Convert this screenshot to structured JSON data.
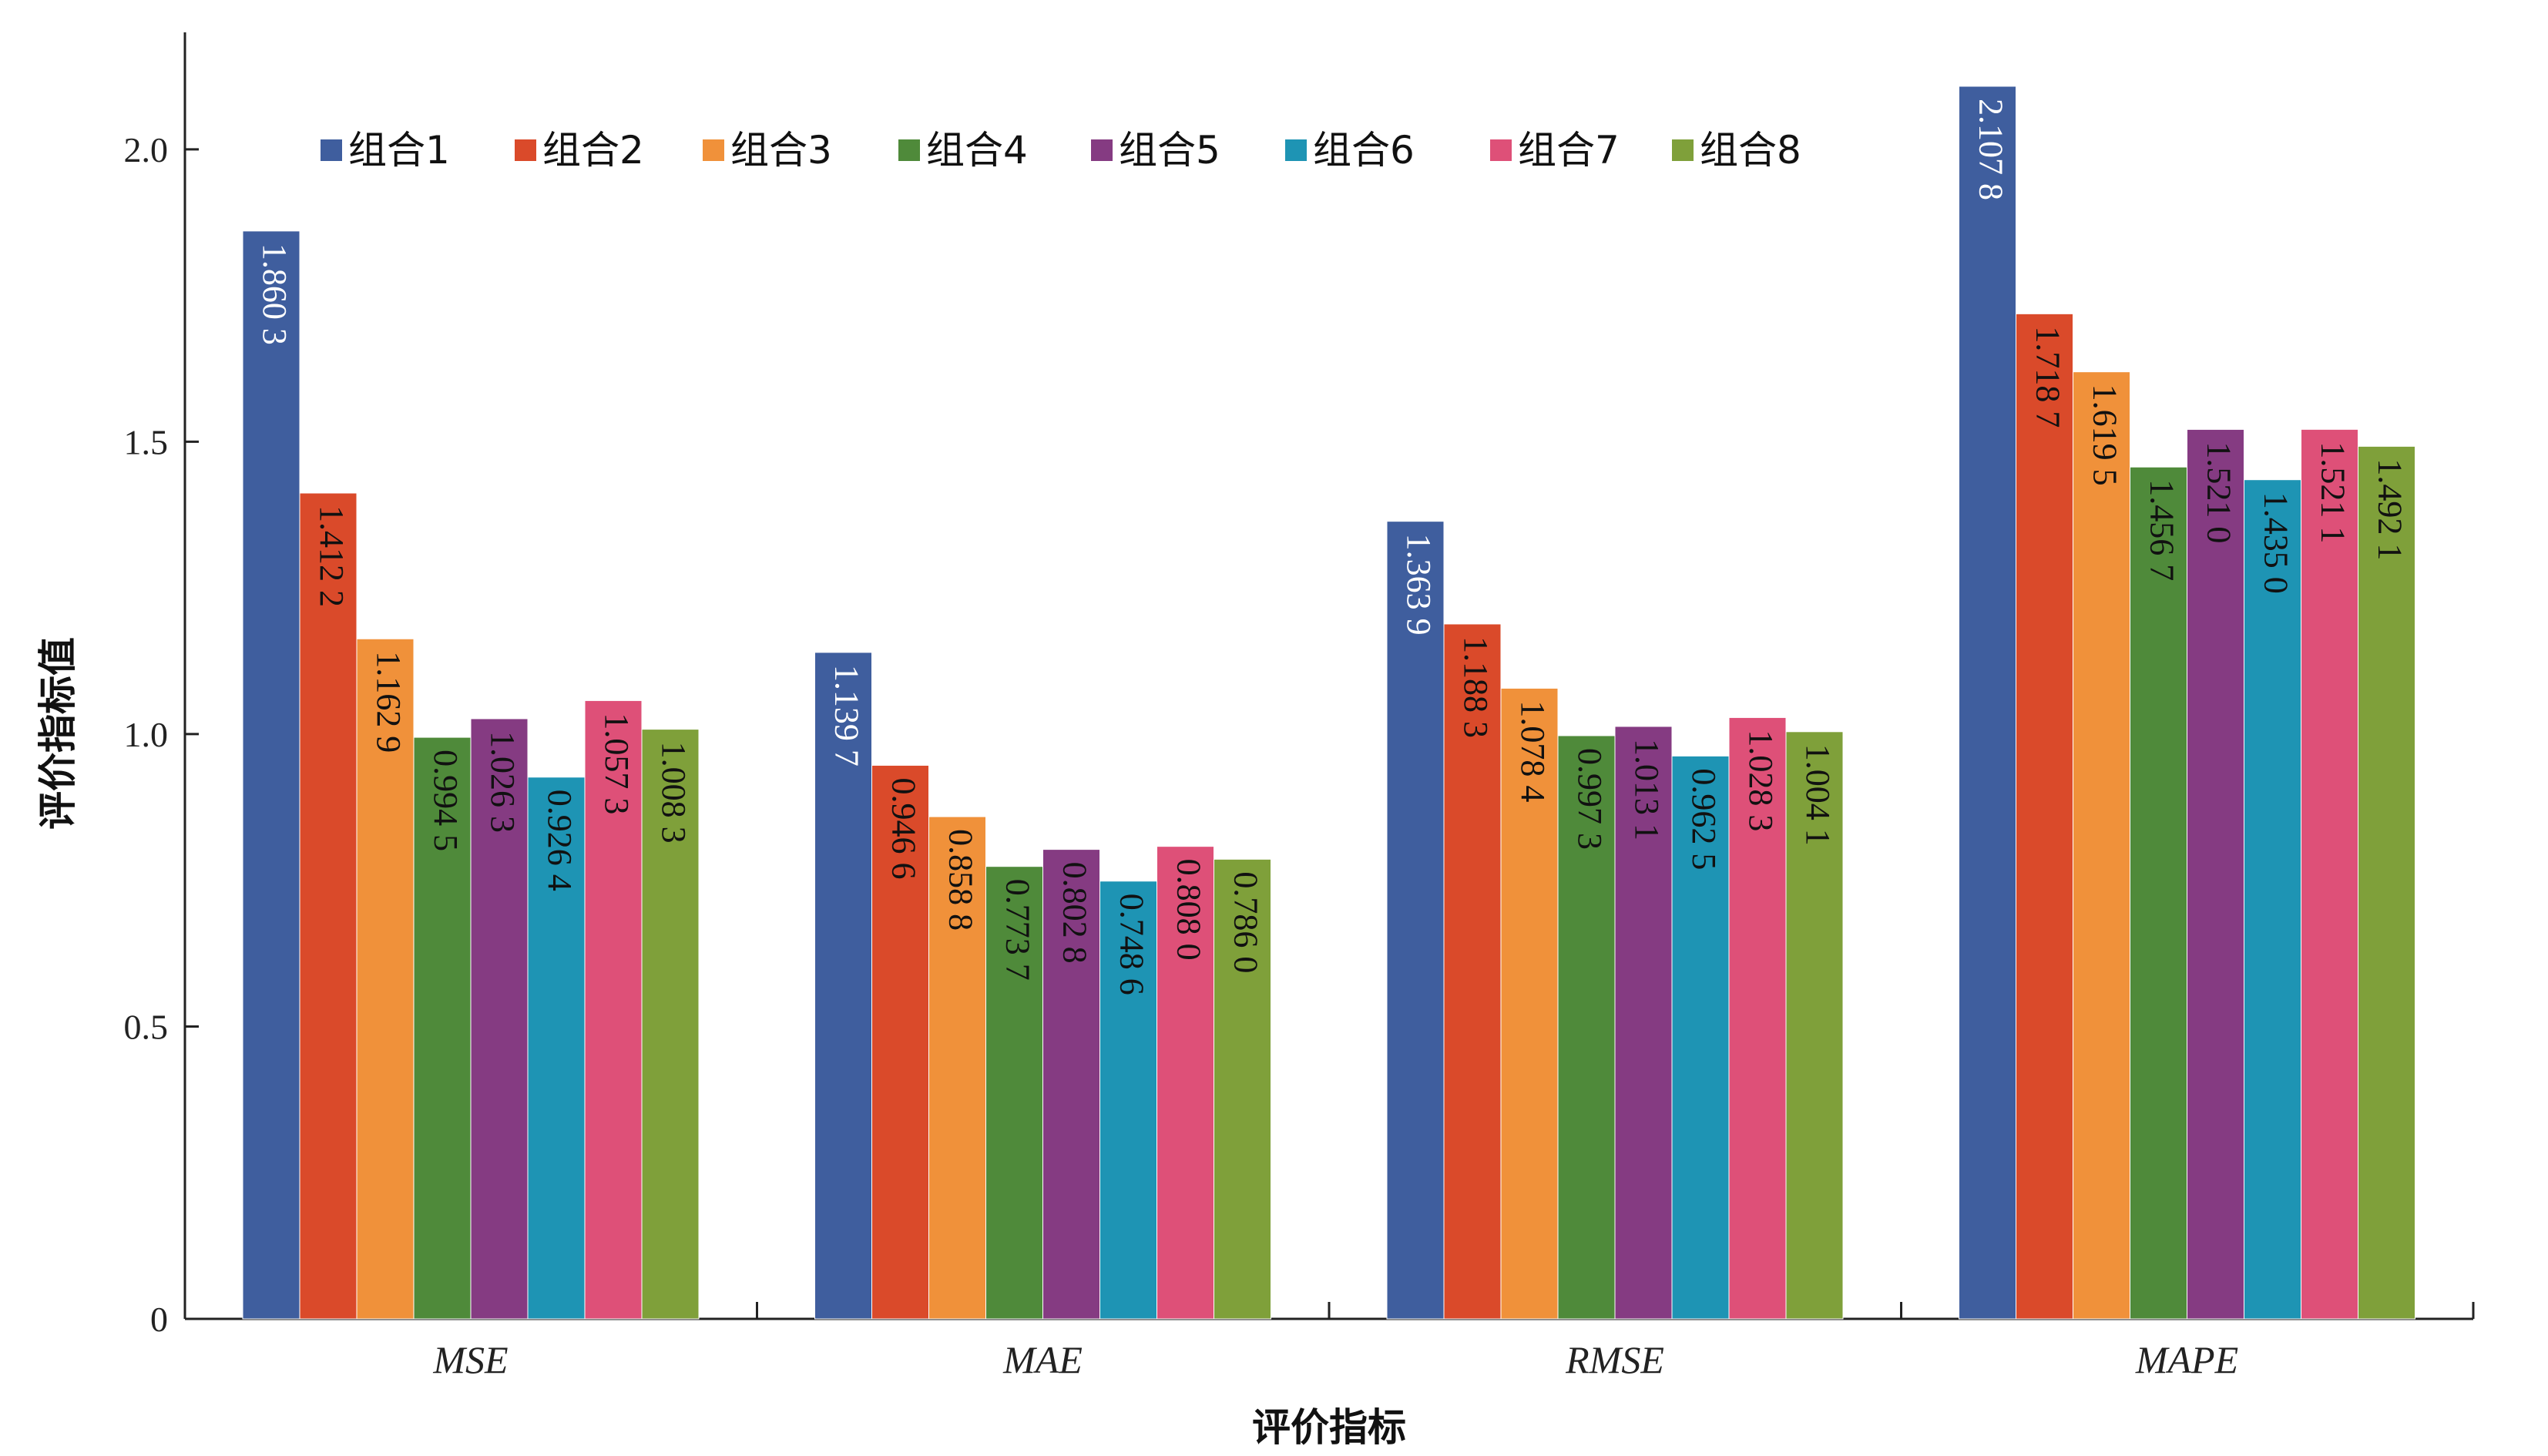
{
  "chart_data": {
    "type": "bar",
    "xlabel": "评价指标",
    "ylabel": "评价指标值",
    "ylim": [
      0,
      2.2
    ],
    "yticks": [
      "0",
      "0.5",
      "1.0",
      "1.5",
      "2.0"
    ],
    "grid": false,
    "legend_position": "top",
    "categories": [
      "MSE",
      "MAE",
      "RMSE",
      "MAPE"
    ],
    "series": [
      {
        "name": "组合1",
        "color": "#3F5E9E",
        "values": [
          1.8603,
          1.1397,
          1.3639,
          2.1078
        ],
        "labels": [
          "1.860 3",
          "1.139 7",
          "1.363 9",
          "2.107 8"
        ]
      },
      {
        "name": "组合2",
        "color": "#DA4A2A",
        "values": [
          1.4122,
          0.9466,
          1.1883,
          1.7187
        ],
        "labels": [
          "1.412 2",
          "0.946 6",
          "1.188 3",
          "1.718 7"
        ]
      },
      {
        "name": "组合3",
        "color": "#F0913A",
        "values": [
          1.1629,
          0.8588,
          1.0784,
          1.6195
        ],
        "labels": [
          "1.162 9",
          "0.858 8",
          "1.078 4",
          "1.619 5"
        ]
      },
      {
        "name": "组合4",
        "color": "#4F8A3A",
        "values": [
          0.9945,
          0.7737,
          0.9973,
          1.4567
        ],
        "labels": [
          "0.994 5",
          "0.773 7",
          "0.997 3",
          "1.456 7"
        ]
      },
      {
        "name": "组合5",
        "color": "#853B82",
        "values": [
          1.0263,
          0.8028,
          1.0131,
          1.521
        ],
        "labels": [
          "1.026 3",
          "0.802 8",
          "1.013 1",
          "1.521 0"
        ]
      },
      {
        "name": "组合6",
        "color": "#1E94B4",
        "values": [
          0.9264,
          0.7486,
          0.9625,
          1.435
        ],
        "labels": [
          "0.926 4",
          "0.748 6",
          "0.962 5",
          "1.435 0"
        ]
      },
      {
        "name": "组合7",
        "color": "#DE5078",
        "values": [
          1.0573,
          0.808,
          1.0283,
          1.5211
        ],
        "labels": [
          "1.057 3",
          "0.808 0",
          "1.028 3",
          "1.521 1"
        ]
      },
      {
        "name": "组合8",
        "color": "#7FA03A",
        "values": [
          1.0083,
          0.786,
          1.0041,
          1.4921
        ],
        "labels": [
          "1.008 3",
          "0.786 0",
          "1.004 1",
          "1.492 1"
        ]
      }
    ],
    "label_color_light": "#ffffff",
    "label_color_dark": "#111111"
  }
}
